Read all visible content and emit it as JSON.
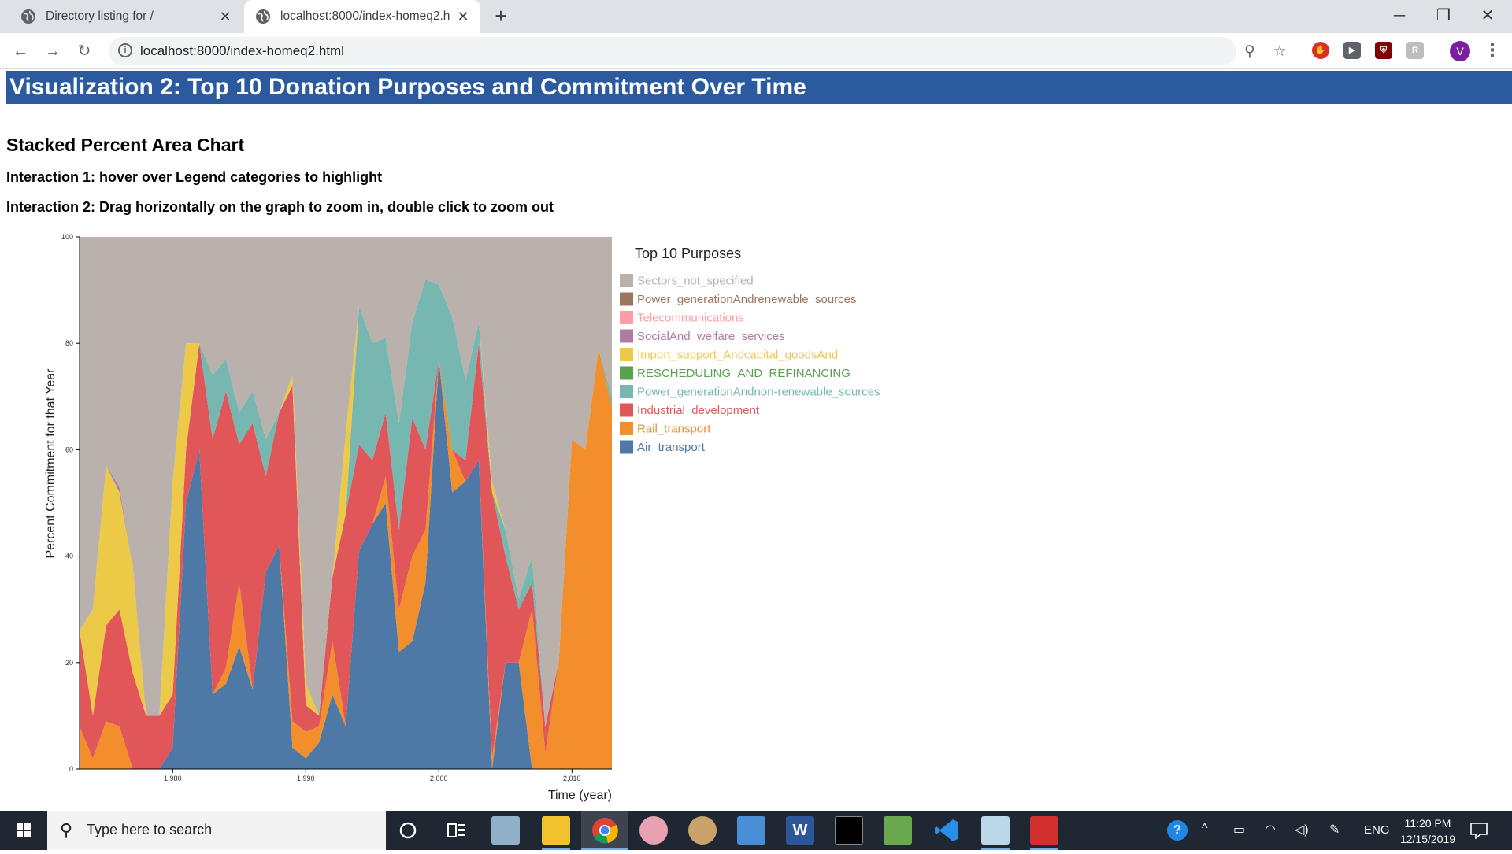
{
  "browser": {
    "tabs": [
      {
        "title": "Directory listing for /",
        "active": false
      },
      {
        "title": "localhost:8000/index-homeq2.html",
        "active": true
      }
    ],
    "url": "localhost:8000/index-homeq2.html",
    "profile_initial": "V"
  },
  "page": {
    "title": "Visualization 2: Top 10 Donation Purposes and Commitment Over Time",
    "subtitle": "Stacked Percent Area Chart",
    "interaction1": "Interaction 1: hover over Legend categories to highlight",
    "interaction2": "Interaction 2: Drag horizontally on the graph to zoom in, double click to zoom out"
  },
  "chart_data": {
    "type": "area",
    "stacked": "percent",
    "title": "",
    "legend_title": "Top 10 Purposes",
    "legend_position": "right",
    "xlabel": "Time (year)",
    "ylabel": "Percent Commitment for that Year",
    "xlim": [
      1973,
      2013
    ],
    "ylim": [
      0,
      100
    ],
    "x_ticks": [
      1980,
      1990,
      2000,
      2010
    ],
    "x_tick_labels": [
      "1,980",
      "1,990",
      "2,000",
      "2,010"
    ],
    "y_ticks": [
      0,
      20,
      40,
      60,
      80,
      100
    ],
    "y_tick_labels": [
      "0",
      "20",
      "40",
      "60",
      "80",
      "100"
    ],
    "x": [
      1973,
      1974,
      1975,
      1976,
      1977,
      1978,
      1979,
      1980,
      1981,
      1982,
      1983,
      1984,
      1985,
      1986,
      1987,
      1988,
      1989,
      1990,
      1991,
      1992,
      1993,
      1994,
      1995,
      1996,
      1997,
      1998,
      1999,
      2000,
      2001,
      2002,
      2003,
      2004,
      2005,
      2006,
      2007,
      2008,
      2009,
      2010,
      2011,
      2012,
      2013
    ],
    "series": [
      {
        "name": "Air_transport",
        "color": "#4e79a7",
        "values": [
          0,
          0,
          0,
          0,
          0,
          0,
          0,
          4,
          50,
          60,
          14,
          16,
          23,
          15,
          37,
          42,
          4,
          2,
          5,
          14,
          8,
          41,
          46,
          50,
          22,
          24,
          35,
          77,
          52,
          54,
          58,
          0,
          20,
          20,
          0,
          0,
          0,
          0,
          0,
          0,
          0
        ]
      },
      {
        "name": "Rail_transport",
        "color": "#f28e2b",
        "values": [
          8,
          2,
          9,
          8,
          0,
          0,
          0,
          0,
          0,
          0,
          0,
          3,
          12,
          0,
          0,
          0,
          5,
          5,
          3,
          10,
          0,
          0,
          0,
          5,
          8,
          16,
          10,
          0,
          8,
          0,
          0,
          2,
          0,
          0,
          30,
          3,
          20,
          62,
          60,
          79,
          68
        ]
      },
      {
        "name": "Industrial_development",
        "color": "#e15759",
        "values": [
          18,
          8,
          18,
          22,
          18,
          10,
          10,
          10,
          10,
          20,
          48,
          52,
          26,
          50,
          18,
          25,
          63,
          5,
          2,
          12,
          40,
          20,
          12,
          12,
          15,
          26,
          15,
          0,
          0,
          4,
          22,
          50,
          20,
          10,
          5,
          5,
          0,
          0,
          0,
          0,
          0
        ]
      },
      {
        "name": "Power_generationAndnon-renewable_sources",
        "color": "#76b7b2",
        "values": [
          0,
          0,
          0,
          0,
          0,
          0,
          0,
          0,
          0,
          0,
          12,
          6,
          6,
          6,
          7,
          0,
          0,
          0,
          0,
          0,
          0,
          26,
          22,
          14,
          20,
          18,
          32,
          14,
          25,
          15,
          4,
          0,
          5,
          2,
          5,
          0,
          0,
          0,
          0,
          0,
          2
        ]
      },
      {
        "name": "RESCHEDULING_AND_REFINANCING",
        "color": "#59a14f",
        "values": [
          0,
          0,
          0,
          0,
          0,
          0,
          0,
          0,
          0,
          0,
          0,
          0,
          0,
          0,
          0,
          0,
          0,
          0,
          0,
          0,
          0,
          0,
          0,
          0,
          0,
          0,
          0,
          0,
          0,
          0,
          0,
          0,
          0,
          0,
          0,
          0,
          0,
          0,
          0,
          0,
          0
        ]
      },
      {
        "name": "Import_support_Andcapital_goodsAnd",
        "color": "#edc948",
        "values": [
          0,
          20,
          30,
          22,
          20,
          0,
          0,
          40,
          20,
          0,
          0,
          0,
          0,
          0,
          0,
          0,
          2,
          4,
          0,
          0,
          15,
          0,
          0,
          0,
          0,
          0,
          0,
          0,
          0,
          0,
          0,
          2,
          0,
          0,
          0,
          0,
          0,
          0,
          0,
          0,
          0
        ]
      },
      {
        "name": "SocialAnd_welfare_services",
        "color": "#b07aa1",
        "values": [
          0,
          0,
          0,
          1,
          0,
          0,
          0,
          0,
          0,
          0,
          0,
          0,
          0,
          0,
          0,
          0,
          0,
          0,
          0,
          0,
          0,
          0,
          0,
          0,
          0,
          0,
          0,
          0,
          0,
          0,
          0,
          0,
          0,
          0,
          0,
          0,
          0,
          0,
          0,
          0,
          0
        ]
      },
      {
        "name": "Telecommunications",
        "color": "#ff9da7",
        "values": [
          0,
          0,
          0,
          0,
          0,
          0,
          0,
          0,
          0,
          0,
          0,
          0,
          0,
          0,
          0,
          0,
          0,
          0,
          0,
          0,
          0,
          0,
          0,
          0,
          0,
          0,
          0,
          0,
          0,
          0,
          0,
          0,
          0,
          0,
          0,
          0,
          0,
          0,
          0,
          0,
          0
        ]
      },
      {
        "name": "Power_generationAndrenewable_sources",
        "color": "#9c755f",
        "values": [
          0,
          0,
          0,
          0,
          0,
          0,
          0,
          0,
          0,
          0,
          0,
          0,
          0,
          0,
          0,
          0,
          0,
          0,
          0,
          0,
          0,
          0,
          0,
          0,
          0,
          0,
          0,
          0,
          0,
          0,
          0,
          0,
          0,
          0,
          0,
          0,
          0,
          0,
          0,
          0,
          0
        ]
      },
      {
        "name": "Sectors_not_specified",
        "color": "#bab0ac",
        "values": [
          0,
          0,
          0,
          0,
          0,
          0,
          0,
          0,
          0,
          0,
          0,
          0,
          0,
          0,
          0,
          0,
          0,
          0,
          0,
          0,
          0,
          0,
          0,
          0,
          0,
          0,
          0,
          0,
          0,
          0,
          0,
          0,
          0,
          0,
          0,
          0,
          0,
          0,
          0,
          0,
          0
        ]
      }
    ]
  },
  "taskbar": {
    "search_placeholder": "Type here to search",
    "language": "ENG",
    "time": "11:20 PM",
    "date": "12/15/2019"
  }
}
